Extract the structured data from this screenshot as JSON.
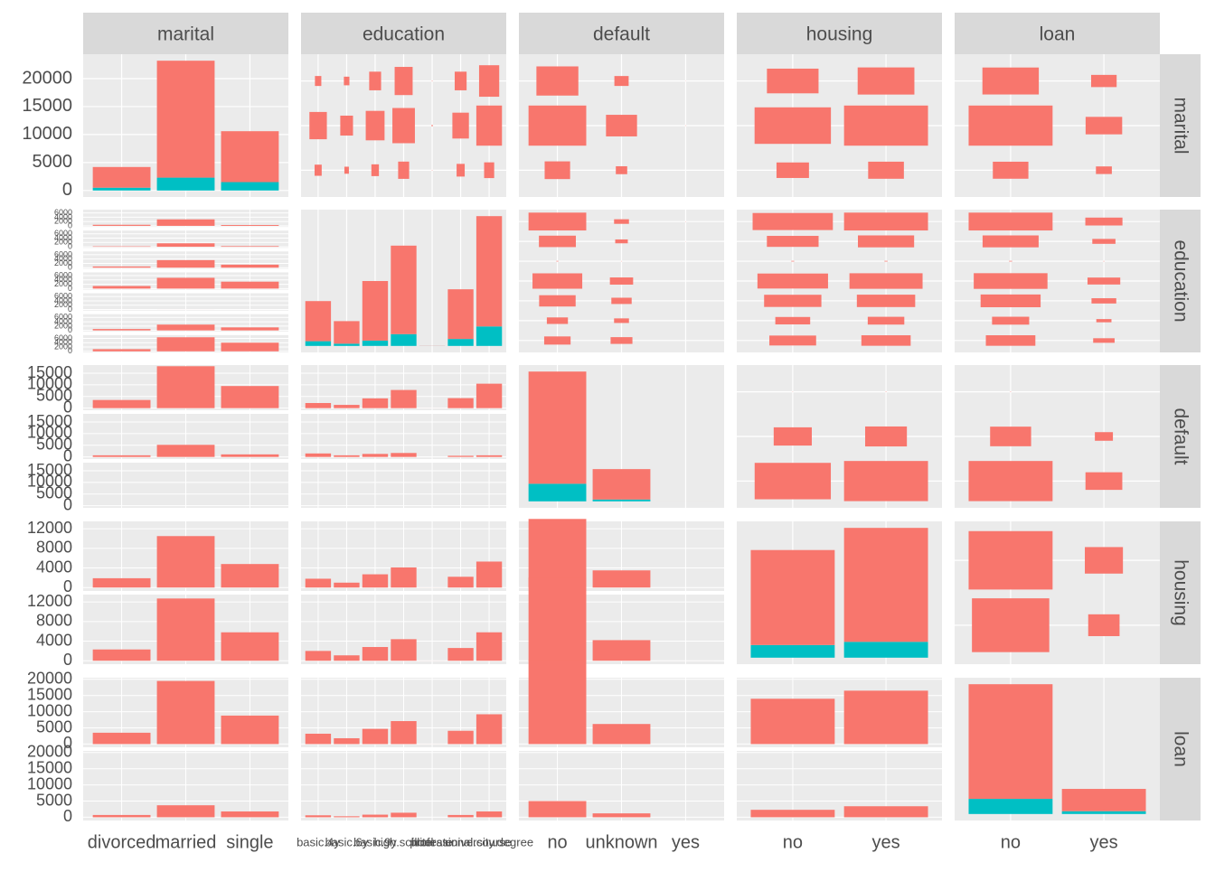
{
  "chart_data": {
    "type": "pairs",
    "colors": [
      "#F8766D",
      "#00BFC4"
    ],
    "variables": [
      {
        "name": "marital",
        "levels": [
          "divorced",
          "married",
          "single"
        ],
        "series": [
          {
            "color": "#F8766D",
            "values": [
              3700,
              20900,
              9100
            ]
          },
          {
            "color": "#00BFC4",
            "values": [
              500,
              2300,
              1500
            ]
          }
        ],
        "ylim": [
          -1160,
          24360
        ],
        "yticks": [
          0,
          5000,
          10000,
          15000,
          20000
        ]
      },
      {
        "name": "education",
        "levels": [
          "basic.4y",
          "basic.6y",
          "basic.9y",
          "high.school",
          "illiterate",
          "professional.course",
          "university.degree"
        ],
        "series": [
          {
            "color": "#F8766D",
            "values": [
              3400,
              1910,
              5050,
              7500,
              11,
              4210,
              9350
            ]
          },
          {
            "color": "#00BFC4",
            "values": [
              400,
              190,
              450,
              1000,
              4,
              590,
              1650
            ]
          }
        ],
        "ylim": [
          -550,
          11550
        ],
        "facet_ylim": [
          -500,
          7500
        ],
        "facet_yticks": [
          0,
          2000,
          4000,
          6000
        ]
      },
      {
        "name": "default",
        "levels": [
          "no",
          "unknown",
          "yes"
        ],
        "series": [
          {
            "color": "#F8766D",
            "values": [
              26800,
              7260,
              3
            ]
          },
          {
            "color": "#00BFC4",
            "values": [
              4200,
              440,
              0
            ]
          }
        ],
        "ylim": [
          -1550,
          32550
        ],
        "facet_ylim": [
          -900,
          18500
        ],
        "facet_yticks": [
          0,
          5000,
          10000,
          15000
        ]
      },
      {
        "name": "housing",
        "levels": [
          "no",
          "yes"
        ],
        "series": [
          {
            "color": "#F8766D",
            "values": [
              15000,
              18000
            ]
          },
          {
            "color": "#00BFC4",
            "values": [
              2000,
              2500
            ]
          }
        ],
        "ylim": [
          -1025,
          21525
        ],
        "facet_ylim": [
          -700,
          13500
        ],
        "facet_yticks": [
          0,
          4000,
          8000,
          12000
        ]
      },
      {
        "name": "loan",
        "levels": [
          "no",
          "yes"
        ],
        "series": [
          {
            "color": "#F8766D",
            "values": [
              26500,
              5150
            ]
          },
          {
            "color": "#00BFC4",
            "values": [
              3500,
              650
            ]
          }
        ],
        "ylim": [
          -1500,
          31500
        ],
        "facet_ylim": [
          -1000,
          20500
        ],
        "facet_yticks": [
          0,
          5000,
          10000,
          15000,
          20000
        ]
      }
    ],
    "pairs": [
      {
        "vars": [
          0,
          1
        ],
        "counts": [
          [
            500,
            200,
            560,
            1200,
            2,
            650,
            1000
          ],
          [
            3000,
            1600,
            3500,
            5000,
            10,
            2700,
            6500
          ],
          [
            400,
            300,
            1400,
            3200,
            3,
            1400,
            4000
          ]
        ]
      },
      {
        "vars": [
          0,
          2
        ],
        "counts": [
          [
            3500,
            700,
            0
          ],
          [
            18000,
            5200,
            2
          ],
          [
            9500,
            1100,
            1
          ]
        ]
      },
      {
        "vars": [
          0,
          3
        ],
        "counts": [
          [
            1900,
            2300
          ],
          [
            10500,
            12700
          ],
          [
            4800,
            5800
          ]
        ]
      },
      {
        "vars": [
          0,
          4
        ],
        "counts": [
          [
            3500,
            700
          ],
          [
            19500,
            3700
          ],
          [
            8800,
            1800
          ]
        ]
      },
      {
        "vars": [
          1,
          2
        ],
        "counts": [
          [
            2200,
            1500,
            0
          ],
          [
            1400,
            700,
            0
          ],
          [
            4200,
            1300,
            0
          ],
          [
            7800,
            1700,
            0
          ],
          [
            12,
            3,
            0
          ],
          [
            4300,
            500,
            1
          ],
          [
            10500,
            700,
            2
          ]
        ]
      },
      {
        "vars": [
          1,
          3
        ],
        "counts": [
          [
            1800,
            2000
          ],
          [
            1000,
            1100
          ],
          [
            2700,
            2800
          ],
          [
            4100,
            4400
          ],
          [
            7,
            8
          ],
          [
            2200,
            2600
          ],
          [
            5300,
            5800
          ]
        ]
      },
      {
        "vars": [
          1,
          4
        ],
        "counts": [
          [
            3200,
            600
          ],
          [
            1800,
            300
          ],
          [
            4700,
            800
          ],
          [
            7100,
            1400
          ],
          [
            12,
            3
          ],
          [
            4100,
            700
          ],
          [
            9200,
            1800
          ]
        ]
      },
      {
        "vars": [
          2,
          3
        ],
        "counts": [
          [
            14000,
            17000
          ],
          [
            3500,
            4200
          ],
          [
            1,
            2
          ]
        ]
      },
      {
        "vars": [
          2,
          4
        ],
        "counts": [
          [
            26000,
            5000
          ],
          [
            6200,
            1200
          ],
          [
            3,
            0
          ]
        ]
      },
      {
        "vars": [
          3,
          4
        ],
        "counts": [
          [
            14000,
            2300
          ],
          [
            16500,
            3400
          ]
        ]
      }
    ]
  }
}
